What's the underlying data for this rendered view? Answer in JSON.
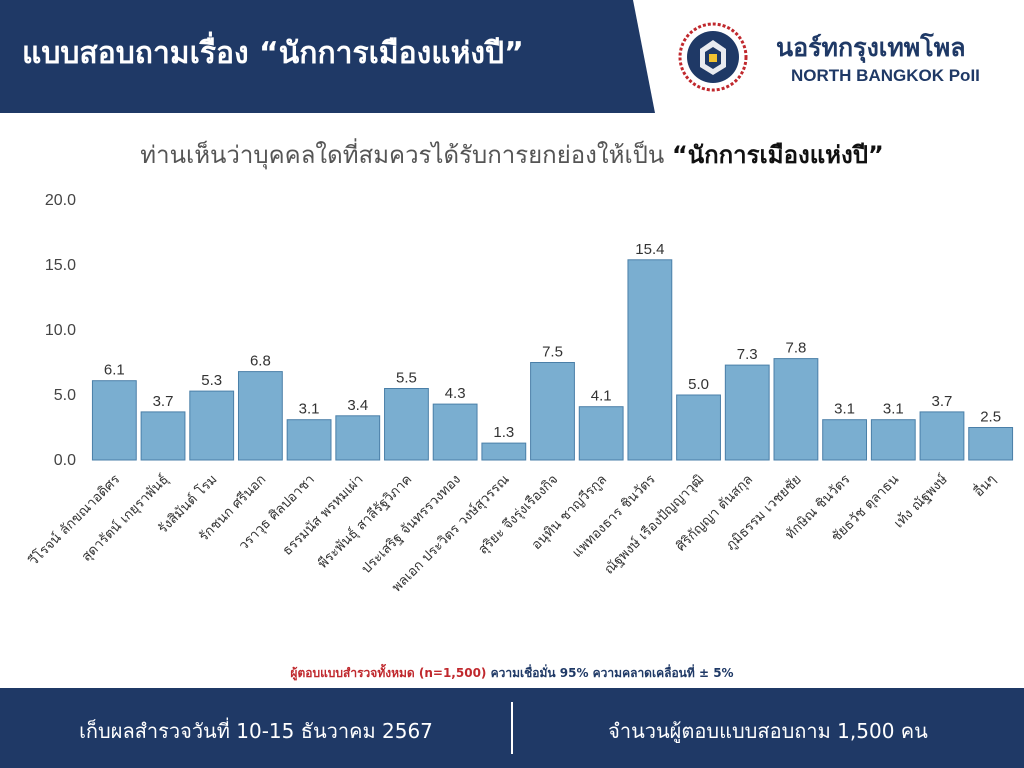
{
  "header": {
    "title": "แบบสอบถามเรื่อง “นักการเมืองแห่งปี”",
    "brand_th": "นอร์ทกรุงเทพโพล",
    "brand_en": "NORTH BANGKOK PoII",
    "logo_icon": "north-bangkok-university-logo"
  },
  "question": {
    "prefix": "ท่านเห็นว่าบุคคลใดที่สมควรได้รับการยกย่องให้เป็น",
    "emphasis": "“นักการเมืองแห่งปี”"
  },
  "chart_data": {
    "type": "bar",
    "categories": [
      "วีโรจน์ ลักขณาอดิศร",
      "สุดารัตน์ เกยุราพันธุ์",
      "รังสิมันต์ โรม",
      "รักชนก ศรีนอก",
      "วราวุธ ศิลปอาชา",
      "ธรรมนัส พรหมเผ่า",
      "พีระพันธุ์ สาลีรัฐวิภาค",
      "ประเสริฐ จันทรรวงทอง",
      "พลเอก ประวิตร วงษ์สุวรรณ",
      "สุริยะ จึงรุ่งเรืองกิจ",
      "อนุทิน ชาญวีรกูล",
      "แพทองธาร ชินวัตร",
      "ณัฐพงษ์ เรืองปัญญาวุฒิ",
      "ศิริกัญญา ตันสกุล",
      "ภูมิธรรม เวชยชัย",
      "ทักษิณ ชินวัตร",
      "ชัยธวัช ตุลาธน",
      "เท้ง ณัฐพงษ์",
      "อื่นๆ"
    ],
    "values": [
      6.1,
      3.7,
      5.3,
      6.8,
      3.1,
      3.4,
      5.5,
      4.3,
      1.3,
      7.5,
      4.1,
      15.4,
      5.0,
      7.3,
      7.8,
      3.1,
      3.1,
      3.7,
      2.5
    ],
    "value_labels": [
      "6.1",
      "3.7",
      "5.3",
      "6.8",
      "3.1",
      "3.4",
      "5.5",
      "4.3",
      "1.3",
      "7.5",
      "4.1",
      "15.4",
      "5.0",
      "7.3",
      "7.8",
      "3.1",
      "3.1",
      "3.7",
      "2.5"
    ],
    "yticks": [
      "0.0",
      "5.0",
      "10.0",
      "15.0",
      "20.0"
    ],
    "ylim": [
      0,
      20
    ],
    "grid": false,
    "bar_color": "#7aaed0",
    "bar_edge_color": "#4a7fa8"
  },
  "note": {
    "sample_text": "ผู้ตอบแบบสำรวจทั้งหมด (n=1,500)",
    "confidence_text": "ความเชื่อมั่น 95% ความคลาดเคลื่อนที่ ± 5%"
  },
  "footer": {
    "date_text": "เก็บผลสำรวจวันที่ 10-15 ธันวาคม 2567",
    "respondents_text": "จำนวนผู้ตอบแบบสอบถาม 1,500 คน"
  },
  "colors": {
    "navy": "#1f3966",
    "accent_red": "#c0282d"
  }
}
